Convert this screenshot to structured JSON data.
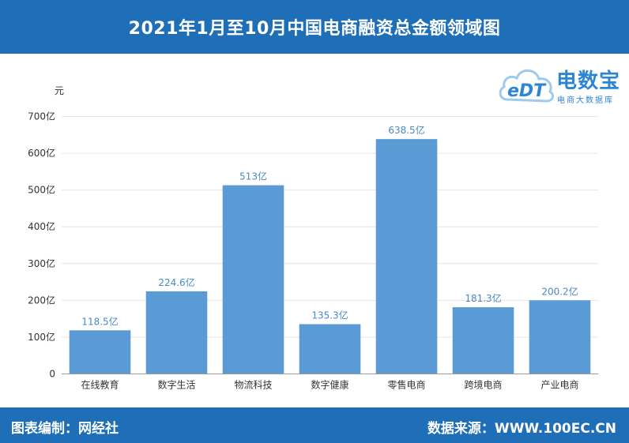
{
  "header": {
    "title": "2021年1月至10月中国电商融资总金额领域图"
  },
  "footer": {
    "left": "图表编制：网经社",
    "right": "数据来源：WWW.100EC.CN"
  },
  "logo": {
    "brand": "电数宝",
    "sub": "电商大数据库",
    "mark": "eDT"
  },
  "colors": {
    "bar": "#5b9bd5",
    "header": "#1e6fb8",
    "value_label": "#4a88c8"
  },
  "chart_data": {
    "type": "bar",
    "unit": "元",
    "categories": [
      "在线教育",
      "数字生活",
      "物流科技",
      "数字健康",
      "零售电商",
      "跨境电商",
      "产业电商"
    ],
    "values": [
      118.5,
      224.6,
      513,
      135.3,
      638.5,
      181.3,
      200.2
    ],
    "value_labels": [
      "118.5亿",
      "224.6亿",
      "513亿",
      "135.3亿",
      "638.5亿",
      "181.3亿",
      "200.2亿"
    ],
    "y_ticks": [
      "0",
      "100亿",
      "200亿",
      "300亿",
      "400亿",
      "500亿",
      "600亿",
      "700亿"
    ],
    "ylim": [
      0,
      700
    ],
    "grid": true
  }
}
